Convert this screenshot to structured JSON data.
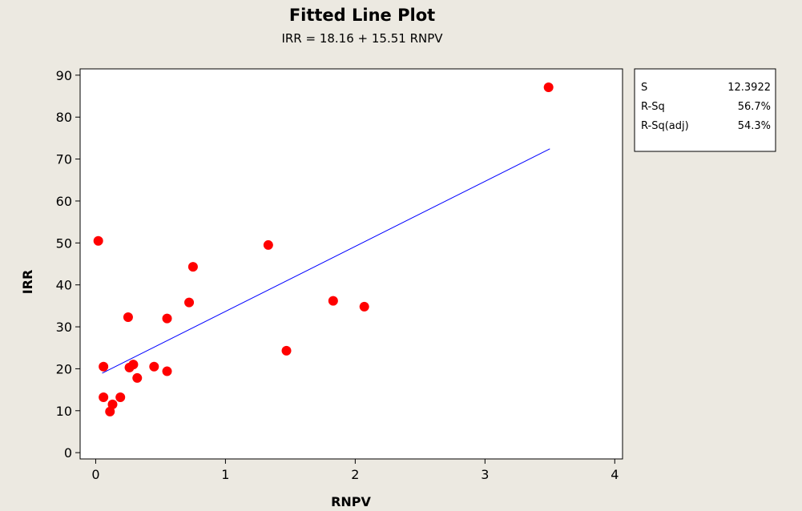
{
  "chart_data": {
    "type": "scatter",
    "title": "Fitted Line Plot",
    "subtitle": "IRR  =  18.16 + 15.51 RNPV",
    "xlabel": "RNPV",
    "ylabel": "IRR",
    "xlim": [
      -0.12,
      4.06
    ],
    "ylim": [
      -1.5,
      91.5
    ],
    "xticks": [
      0,
      1,
      2,
      3,
      4
    ],
    "xtick_labels": [
      "0",
      "1",
      "2",
      "3",
      "4"
    ],
    "yticks": [
      0,
      10,
      20,
      30,
      40,
      50,
      60,
      70,
      80,
      90
    ],
    "ytick_labels": [
      "0",
      "10",
      "20",
      "30",
      "40",
      "50",
      "60",
      "70",
      "80",
      "90"
    ],
    "grid": false,
    "point_color": "#ff0000",
    "fit_color": "#0000ff",
    "fit": {
      "intercept": 18.16,
      "slope": 15.51,
      "x_range": [
        0.05,
        3.5
      ]
    },
    "points": [
      {
        "x": 0.02,
        "y": 50.5
      },
      {
        "x": 0.06,
        "y": 20.5
      },
      {
        "x": 0.06,
        "y": 13.2
      },
      {
        "x": 0.11,
        "y": 9.8
      },
      {
        "x": 0.13,
        "y": 11.5
      },
      {
        "x": 0.19,
        "y": 13.2
      },
      {
        "x": 0.25,
        "y": 32.3
      },
      {
        "x": 0.26,
        "y": 20.3
      },
      {
        "x": 0.29,
        "y": 21.0
      },
      {
        "x": 0.32,
        "y": 17.8
      },
      {
        "x": 0.45,
        "y": 20.5
      },
      {
        "x": 0.55,
        "y": 32.0
      },
      {
        "x": 0.55,
        "y": 19.4
      },
      {
        "x": 0.72,
        "y": 35.8
      },
      {
        "x": 0.75,
        "y": 44.3
      },
      {
        "x": 1.33,
        "y": 49.5
      },
      {
        "x": 1.47,
        "y": 24.3
      },
      {
        "x": 1.83,
        "y": 36.2
      },
      {
        "x": 2.07,
        "y": 34.8
      },
      {
        "x": 3.49,
        "y": 87.1
      }
    ]
  },
  "stats_box": {
    "rows": [
      {
        "label": "S",
        "value": "12.3922"
      },
      {
        "label": "R-Sq",
        "value": "56.7%"
      },
      {
        "label": "R-Sq(adj)",
        "value": "54.3%"
      }
    ]
  }
}
